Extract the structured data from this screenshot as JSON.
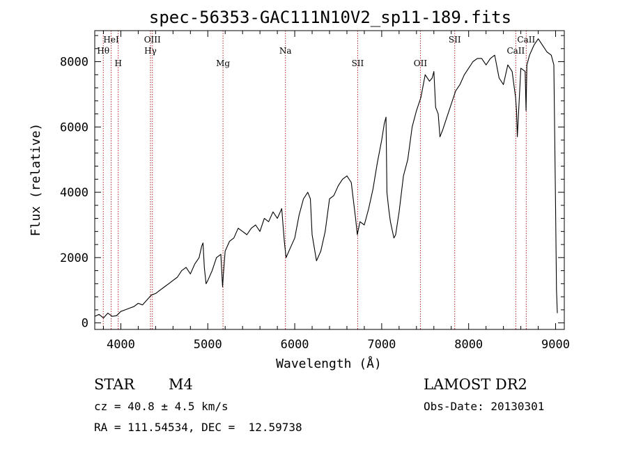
{
  "chart_data": {
    "type": "line",
    "title": "spec-56353-GAC111N10V2_sp11-189.fits",
    "xlabel": "Wavelength (Å)",
    "ylabel": "Flux (relative)",
    "xlim": [
      3700,
      9100
    ],
    "ylim": [
      -200,
      8950
    ],
    "xticks": [
      4000,
      5000,
      6000,
      7000,
      8000,
      9000
    ],
    "yticks": [
      0,
      2000,
      4000,
      6000,
      8000
    ],
    "grid": false,
    "line_color": "#000000",
    "marker_color": "#b22222",
    "lines": [
      {
        "name": "Hθ",
        "x": 3798,
        "row": 2
      },
      {
        "name": "HeI",
        "x": 3889,
        "row": 1
      },
      {
        "name": "H",
        "x": 3970,
        "row": 3
      },
      {
        "name": "OIII",
        "x": 4363,
        "row": 1
      },
      {
        "name": "Hγ",
        "x": 4341,
        "row": 2
      },
      {
        "name": "Mg",
        "x": 5175,
        "row": 3
      },
      {
        "name": "Na",
        "x": 5893,
        "row": 2
      },
      {
        "name": "SII",
        "x": 6724,
        "row": 3
      },
      {
        "name": "OII",
        "x": 7445,
        "row": 3
      },
      {
        "name": "SII",
        "x": 7840,
        "row": 1
      },
      {
        "name": "CaII",
        "x": 8542,
        "row": 2
      },
      {
        "name": "CaII",
        "x": 8662,
        "row": 1
      }
    ],
    "series": [
      {
        "x": [
          3700,
          3750,
          3800,
          3850,
          3900,
          3950,
          4000,
          4050,
          4100,
          4150,
          4200,
          4250,
          4300,
          4350,
          4400,
          4450,
          4500,
          4550,
          4600,
          4650,
          4700,
          4750,
          4800,
          4850,
          4900,
          4930,
          4945,
          4960,
          4980,
          5000,
          5050,
          5100,
          5150,
          5170,
          5180,
          5200,
          5250,
          5300,
          5350,
          5400,
          5450,
          5500,
          5550,
          5600,
          5650,
          5700,
          5750,
          5800,
          5850,
          5880,
          5900,
          5950,
          6000,
          6050,
          6100,
          6150,
          6180,
          6200,
          6250,
          6300,
          6350,
          6400,
          6450,
          6500,
          6550,
          6600,
          6650,
          6700,
          6720,
          6750,
          6800,
          6850,
          6900,
          6950,
          7000,
          7030,
          7050,
          7060,
          7080,
          7100,
          7140,
          7160,
          7200,
          7250,
          7300,
          7350,
          7400,
          7450,
          7500,
          7550,
          7580,
          7600,
          7620,
          7650,
          7670,
          7700,
          7750,
          7800,
          7850,
          7900,
          7950,
          8000,
          8050,
          8100,
          8150,
          8200,
          8250,
          8300,
          8350,
          8400,
          8450,
          8500,
          8540,
          8550,
          8560,
          8600,
          8650,
          8660,
          8670,
          8700,
          8750,
          8800,
          8850,
          8900,
          8950,
          8980,
          9000,
          9010,
          9020
        ],
        "y": [
          200,
          260,
          150,
          300,
          200,
          220,
          350,
          400,
          450,
          500,
          600,
          550,
          700,
          850,
          900,
          1000,
          1100,
          1200,
          1300,
          1400,
          1600,
          1700,
          1500,
          1800,
          2000,
          2350,
          2450,
          1700,
          1200,
          1300,
          1600,
          2000,
          2100,
          1100,
          1500,
          2200,
          2500,
          2600,
          2900,
          2800,
          2700,
          2900,
          3000,
          2800,
          3200,
          3100,
          3400,
          3200,
          3500,
          2500,
          2000,
          2300,
          2600,
          3300,
          3800,
          4000,
          3800,
          2700,
          1900,
          2200,
          2800,
          3800,
          3900,
          4200,
          4400,
          4500,
          4300,
          3200,
          2700,
          3100,
          3000,
          3500,
          4100,
          4900,
          5600,
          6100,
          6300,
          4000,
          3500,
          3100,
          2600,
          2700,
          3400,
          4500,
          5000,
          6000,
          6500,
          6900,
          7600,
          7400,
          7500,
          7700,
          6600,
          6400,
          5700,
          5900,
          6300,
          6700,
          7100,
          7300,
          7600,
          7800,
          8000,
          8100,
          8100,
          7900,
          8100,
          8200,
          7500,
          7300,
          7900,
          7700,
          6900,
          6500,
          5700,
          7800,
          7700,
          6500,
          7900,
          8200,
          8500,
          8700,
          8500,
          8300,
          8200,
          7900,
          3500,
          1000,
          300
        ]
      }
    ]
  },
  "info": {
    "object_type": "STAR",
    "subclass": "M4",
    "survey": "LAMOST DR2",
    "redshift_text": "cz = 40.8 ± 4.5 km/s",
    "obs_date_text": "Obs-Date: 20130301",
    "coords_text": "RA = 111.54534, DEC =  12.59738"
  }
}
